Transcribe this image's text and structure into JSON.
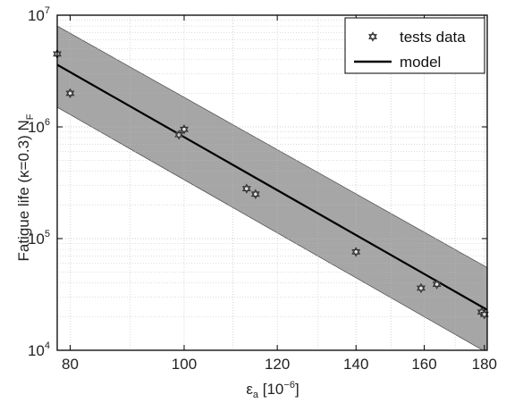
{
  "chart_data": {
    "type": "scatter",
    "x_scale": "log",
    "y_scale": "log",
    "xlim": [
      78,
      181
    ],
    "ylim": [
      10000,
      10000000
    ],
    "grid": true,
    "legend_position": "top-right",
    "x_ticks": [
      80,
      100,
      120,
      140,
      160,
      180
    ],
    "x_tick_labels": [
      "80",
      "100",
      "120",
      "140",
      "160",
      "180"
    ],
    "y_ticks": [
      {
        "value": 10000,
        "base": "10",
        "exp": "4"
      },
      {
        "value": 100000,
        "base": "10",
        "exp": "5"
      },
      {
        "value": 1000000,
        "base": "10",
        "exp": "6"
      },
      {
        "value": 10000000,
        "base": "10",
        "exp": "7"
      }
    ],
    "xlabel": {
      "main": "ε",
      "sub": "a",
      "rest": " [10",
      "sup": "−6",
      "end": "]"
    },
    "ylabel": {
      "main": "Fatigue life (κ=0.3) N",
      "sub": "F"
    },
    "legend": [
      {
        "label": "tests data",
        "marker": "hexagram"
      },
      {
        "label": "model",
        "marker": "line"
      }
    ],
    "series": [
      {
        "name": "tests data",
        "kind": "points",
        "x": [
          78,
          80,
          99,
          100,
          113,
          115,
          140,
          159,
          164,
          179,
          180
        ],
        "y": [
          4500000,
          2000000,
          850000,
          950000,
          280000,
          250000,
          76000,
          36000,
          39000,
          22000,
          21000
        ]
      },
      {
        "name": "model",
        "kind": "line",
        "x": [
          78,
          181
        ],
        "y": [
          3600000,
          23000
        ]
      },
      {
        "name": "scatter band",
        "kind": "band",
        "x": [
          78,
          181
        ],
        "upper": [
          8000000,
          55000
        ],
        "lower": [
          1500000,
          9500
        ]
      }
    ],
    "colors": {
      "band": "#a6a6a6",
      "model": "#000000",
      "marker": "#333333",
      "grid": "#bdbdbd",
      "axis": "#000000"
    }
  }
}
